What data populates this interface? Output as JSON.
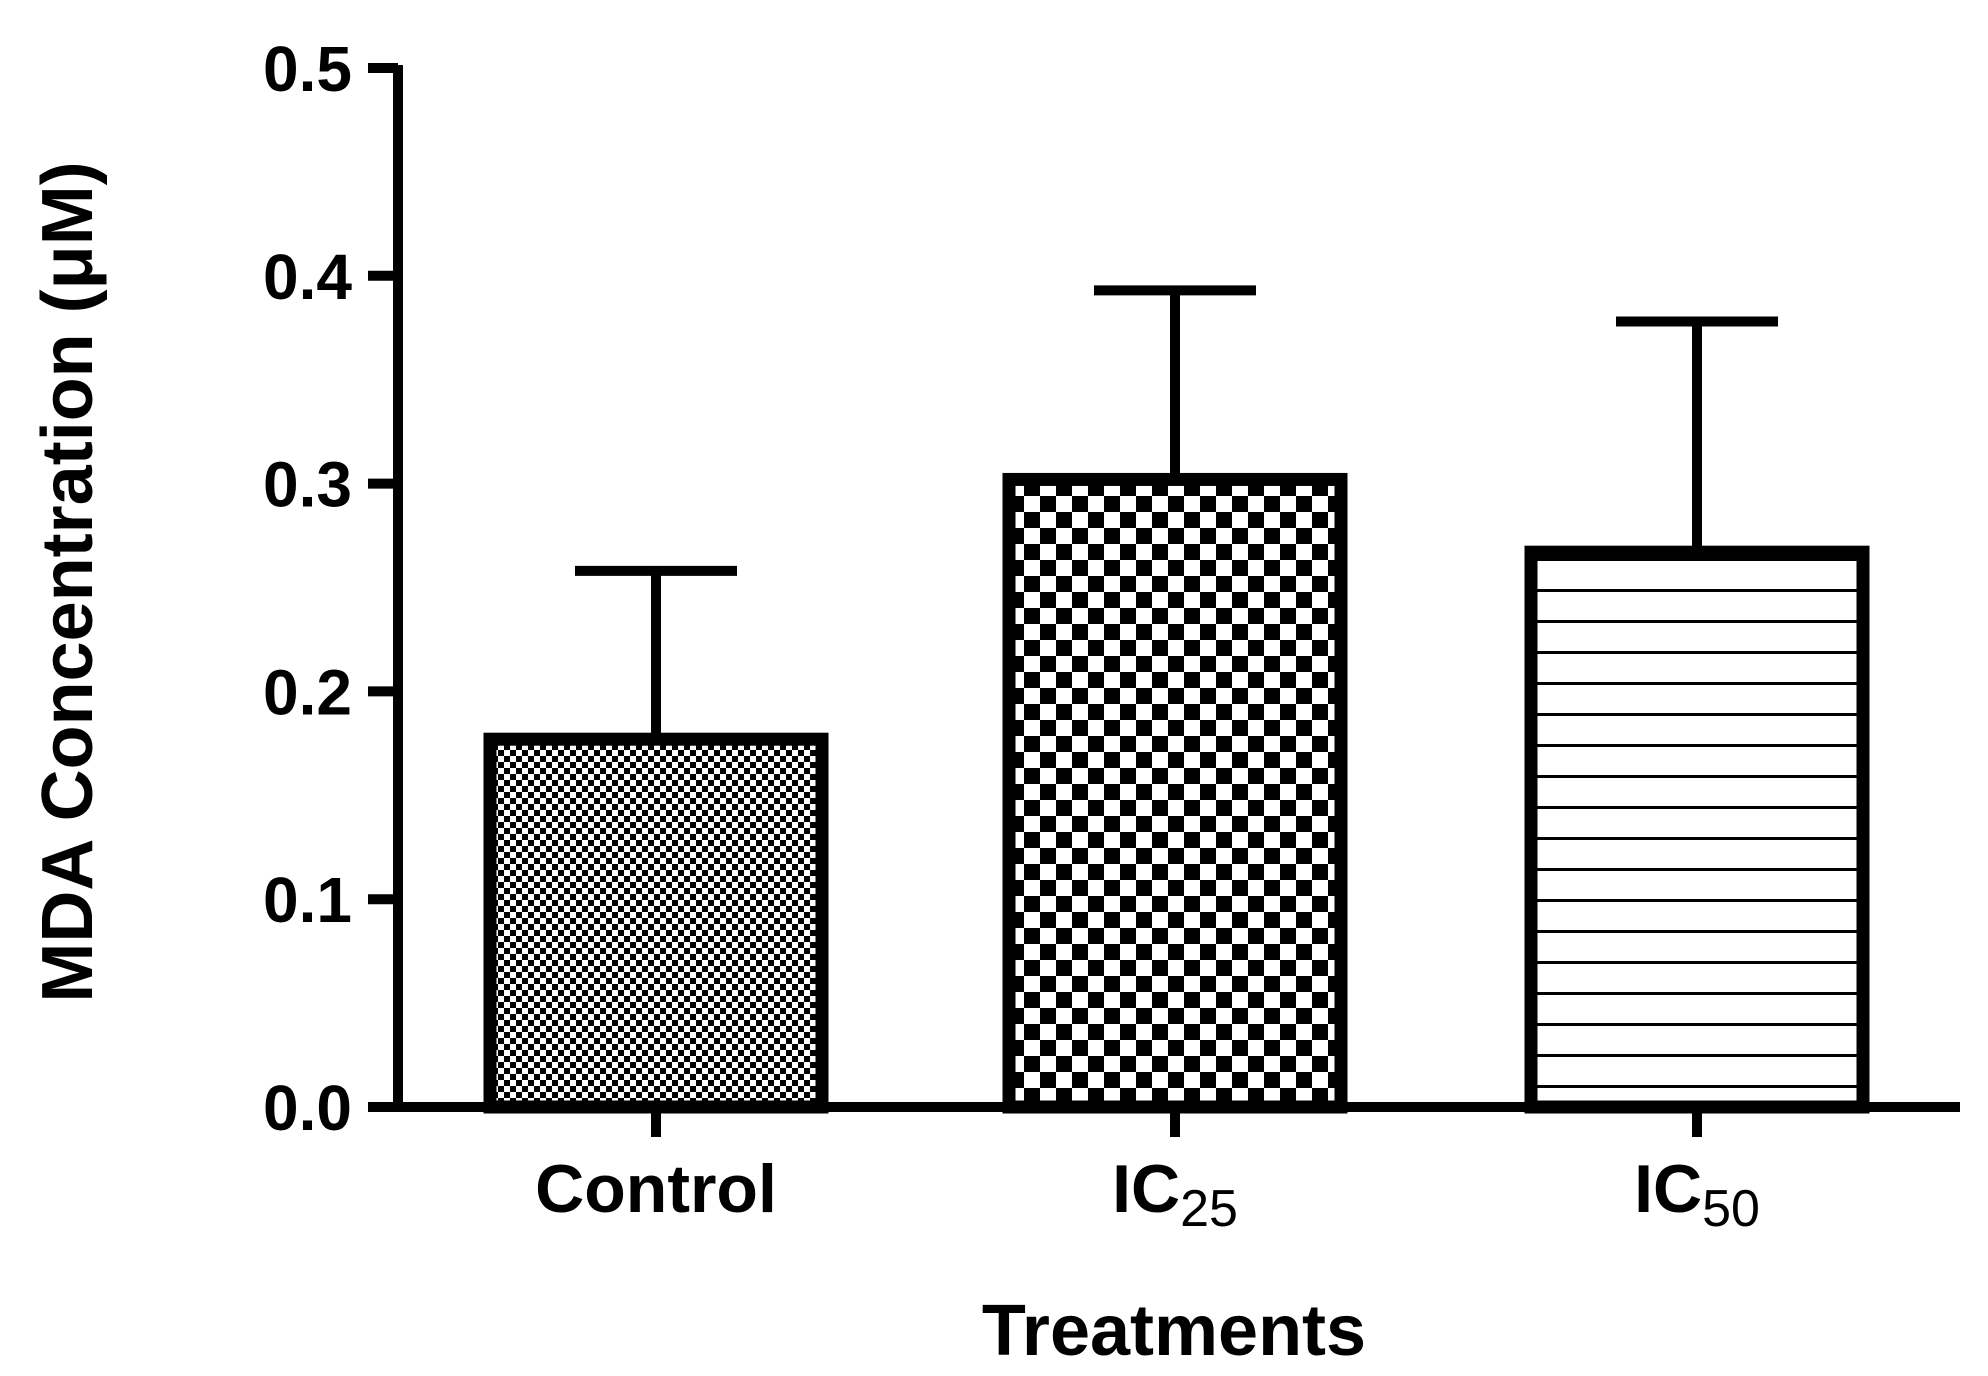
{
  "chart_data": {
    "type": "bar",
    "title": "",
    "xlabel": "Treatments",
    "ylabel": "MDA Concentration (μM)",
    "ylim": [
      0,
      0.5
    ],
    "yticks": [
      0.0,
      0.1,
      0.2,
      0.3,
      0.4,
      0.5
    ],
    "ytick_labels": [
      "0.0",
      "0.1",
      "0.2",
      "0.3",
      "0.4",
      "0.5"
    ],
    "categories": [
      {
        "base": "Control",
        "sub": ""
      },
      {
        "base": "IC",
        "sub": "25"
      },
      {
        "base": "IC",
        "sub": "50"
      }
    ],
    "values": [
      0.177,
      0.302,
      0.267
    ],
    "error_upper": [
      0.081,
      0.091,
      0.111
    ],
    "patterns": [
      "fine-checker",
      "coarse-checker",
      "horizontal-lines"
    ],
    "colors": {
      "ink": "#000000",
      "fill": "#ffffff"
    }
  }
}
